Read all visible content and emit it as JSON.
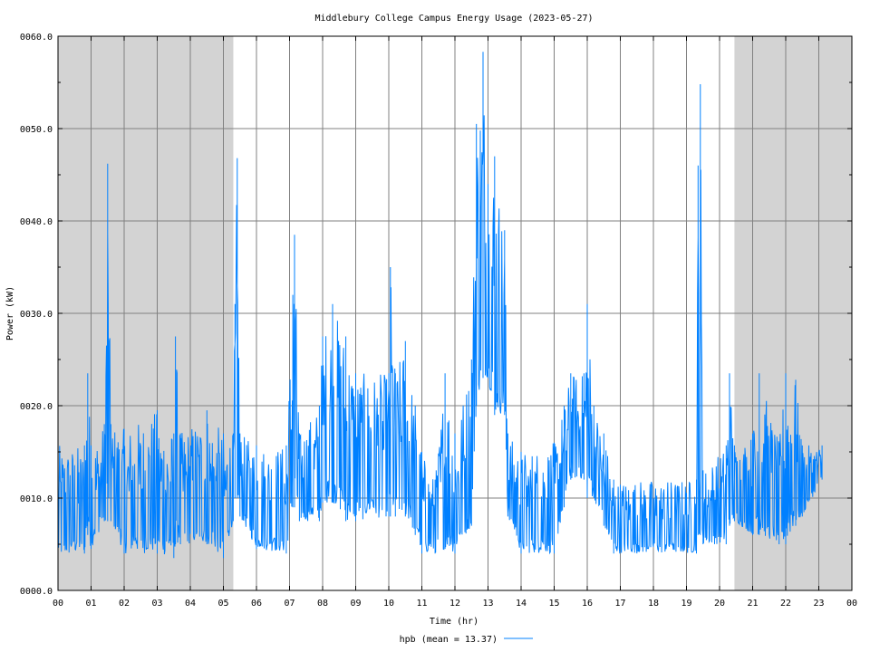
{
  "chart_data": {
    "type": "line",
    "title": "Middlebury College Campus Energy Usage (2023-05-27)",
    "xlabel": "Time (hr)",
    "ylabel": "Power (kW)",
    "xlim": [
      0,
      24
    ],
    "ylim": [
      0,
      60
    ],
    "x_ticks": [
      "00",
      "01",
      "02",
      "03",
      "04",
      "05",
      "06",
      "07",
      "08",
      "09",
      "10",
      "11",
      "12",
      "13",
      "14",
      "15",
      "16",
      "17",
      "18",
      "19",
      "20",
      "21",
      "22",
      "23",
      "00"
    ],
    "y_ticks": [
      "0000.0",
      "0010.0",
      "0020.0",
      "0030.0",
      "0040.0",
      "0050.0",
      "0060.0"
    ],
    "grid": true,
    "shaded_night_ranges_hr": [
      [
        0,
        5.3
      ],
      [
        20.45,
        24
      ]
    ],
    "shade_color": "#d3d3d3",
    "series": [
      {
        "name": "hpb",
        "legend_label": "hpb (mean = 13.37)",
        "color": "#0080ff",
        "samples_per_hour": 60,
        "x_end_hr": 23.1,
        "envelope_hr_kw": [
          [
            0.0,
            3.5,
            15.7
          ],
          [
            0.8,
            4.0,
            15.7
          ],
          [
            0.9,
            6.0,
            23.5
          ],
          [
            1.0,
            4.5,
            15.7
          ],
          [
            1.4,
            7.5,
            18.0
          ],
          [
            1.5,
            7.5,
            46.2
          ],
          [
            1.6,
            7.5,
            18.0
          ],
          [
            2.0,
            4.0,
            17.5
          ],
          [
            3.0,
            4.0,
            19.5
          ],
          [
            3.5,
            3.5,
            17.0
          ],
          [
            3.55,
            5.0,
            27.5
          ],
          [
            3.7,
            5.0,
            17.0
          ],
          [
            4.5,
            5.0,
            19.5
          ],
          [
            5.0,
            3.5,
            17.0
          ],
          [
            5.3,
            7.5,
            17.0
          ],
          [
            5.35,
            10.0,
            31.0
          ],
          [
            5.42,
            10.0,
            46.8
          ],
          [
            5.5,
            8.0,
            17.0
          ],
          [
            6.0,
            4.5,
            15.7
          ],
          [
            6.9,
            4.0,
            15.7
          ],
          [
            7.1,
            9.0,
            32.0
          ],
          [
            7.15,
            9.0,
            38.5
          ],
          [
            7.3,
            7.5,
            17.0
          ],
          [
            7.9,
            7.5,
            20.0
          ],
          [
            8.0,
            9.5,
            27.5
          ],
          [
            8.3,
            9.5,
            31.0
          ],
          [
            8.7,
            7.5,
            27.5
          ],
          [
            9.0,
            7.5,
            23.5
          ],
          [
            10.0,
            8.0,
            23.5
          ],
          [
            10.05,
            8.0,
            35.0
          ],
          [
            10.2,
            8.0,
            23.5
          ],
          [
            10.5,
            8.0,
            27.0
          ],
          [
            10.8,
            6.0,
            20.0
          ],
          [
            11.0,
            4.0,
            15.0
          ],
          [
            11.4,
            4.0,
            12.0
          ],
          [
            11.7,
            4.5,
            23.5
          ],
          [
            12.0,
            4.0,
            17.0
          ],
          [
            12.5,
            7.0,
            25.0
          ],
          [
            12.65,
            20.0,
            50.5
          ],
          [
            12.85,
            23.0,
            58.3
          ],
          [
            13.0,
            23.0,
            44.0
          ],
          [
            13.2,
            19.0,
            47.0
          ],
          [
            13.5,
            19.0,
            39.0
          ],
          [
            13.6,
            8.0,
            17.0
          ],
          [
            14.0,
            4.0,
            15.0
          ],
          [
            15.0,
            4.0,
            16.0
          ],
          [
            15.3,
            9.0,
            20.0
          ],
          [
            15.5,
            12.0,
            23.5
          ],
          [
            15.9,
            12.0,
            23.5
          ],
          [
            16.0,
            10.0,
            31.0
          ],
          [
            16.2,
            10.0,
            20.0
          ],
          [
            16.5,
            7.0,
            17.0
          ],
          [
            16.8,
            4.0,
            12.0
          ],
          [
            19.3,
            4.0,
            12.0
          ],
          [
            19.35,
            6.0,
            46.0
          ],
          [
            19.42,
            6.0,
            54.8
          ],
          [
            19.5,
            5.0,
            13.0
          ],
          [
            20.2,
            5.0,
            15.7
          ],
          [
            20.3,
            7.0,
            23.5
          ],
          [
            20.45,
            7.5,
            15.7
          ],
          [
            21.0,
            6.0,
            17.0
          ],
          [
            21.2,
            6.0,
            23.5
          ],
          [
            21.8,
            5.0,
            16.0
          ],
          [
            22.0,
            5.0,
            23.5
          ],
          [
            22.3,
            7.0,
            22.8
          ],
          [
            22.5,
            8.0,
            15.7
          ],
          [
            23.1,
            12.0,
            15.7
          ]
        ]
      }
    ]
  }
}
